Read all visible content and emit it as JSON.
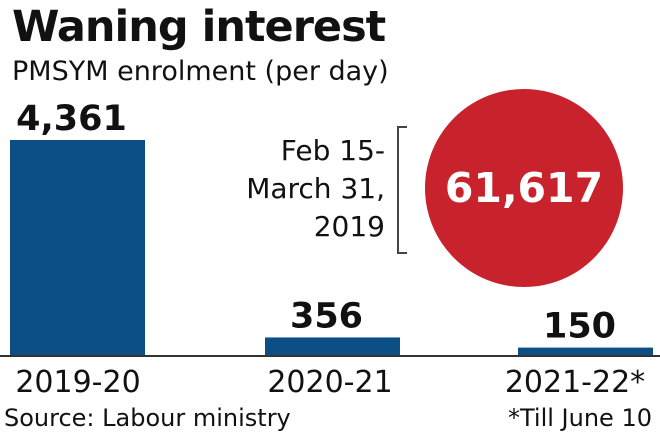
{
  "title": "Waning interest",
  "subtitle": "PMSYM enrolment (per day)",
  "callout": {
    "lines": [
      "Feb 15-",
      "March 31,",
      "2019"
    ],
    "value": "61,617",
    "color": "#c8232c"
  },
  "source": "Source: Labour ministry",
  "footnote": "*Till June 10",
  "chart_data": {
    "type": "bar",
    "title": "Waning interest",
    "subtitle": "PMSYM enrolment (per day)",
    "categories": [
      "2019-20",
      "2020-21",
      "2021-22*"
    ],
    "values": [
      4361,
      356,
      150
    ],
    "value_labels": [
      "4,361",
      "356",
      "150"
    ],
    "bar_color": "#0b4f86",
    "ylim": [
      0,
      4361
    ],
    "grid": false,
    "legend": "none",
    "annotation": {
      "label": "Feb 15- March 31, 2019",
      "value": 61617,
      "value_label": "61,617"
    }
  }
}
